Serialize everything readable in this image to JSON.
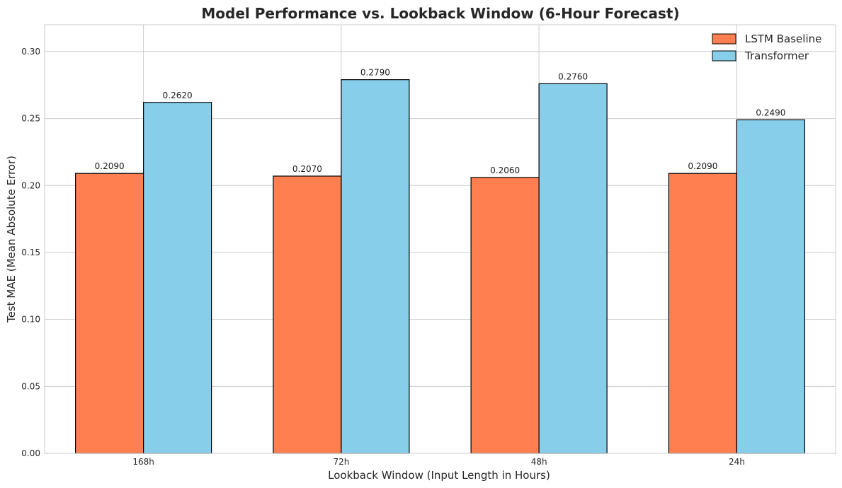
{
  "chart_data": {
    "type": "bar",
    "title": "Model Performance vs. Lookback Window (6-Hour Forecast)",
    "xlabel": "Lookback Window (Input Length in Hours)",
    "ylabel": "Test MAE (Mean Absolute Error)",
    "categories": [
      "168h",
      "72h",
      "48h",
      "24h"
    ],
    "series": [
      {
        "name": "LSTM Baseline",
        "color": "#FF7F50",
        "values": [
          0.209,
          0.207,
          0.206,
          0.209
        ],
        "labels": [
          "0.2090",
          "0.2070",
          "0.2060",
          "0.2090"
        ]
      },
      {
        "name": "Transformer",
        "color": "#87CEEB",
        "values": [
          0.262,
          0.279,
          0.276,
          0.249
        ],
        "labels": [
          "0.2620",
          "0.2790",
          "0.2760",
          "0.2490"
        ]
      }
    ],
    "ylim": [
      0,
      0.32
    ],
    "yticks": [
      0.0,
      0.05,
      0.1,
      0.15,
      0.2,
      0.25,
      0.3
    ],
    "ytick_labels": [
      "0.00",
      "0.05",
      "0.10",
      "0.15",
      "0.20",
      "0.25",
      "0.30"
    ],
    "grid": true,
    "legend_position": "top-right"
  }
}
